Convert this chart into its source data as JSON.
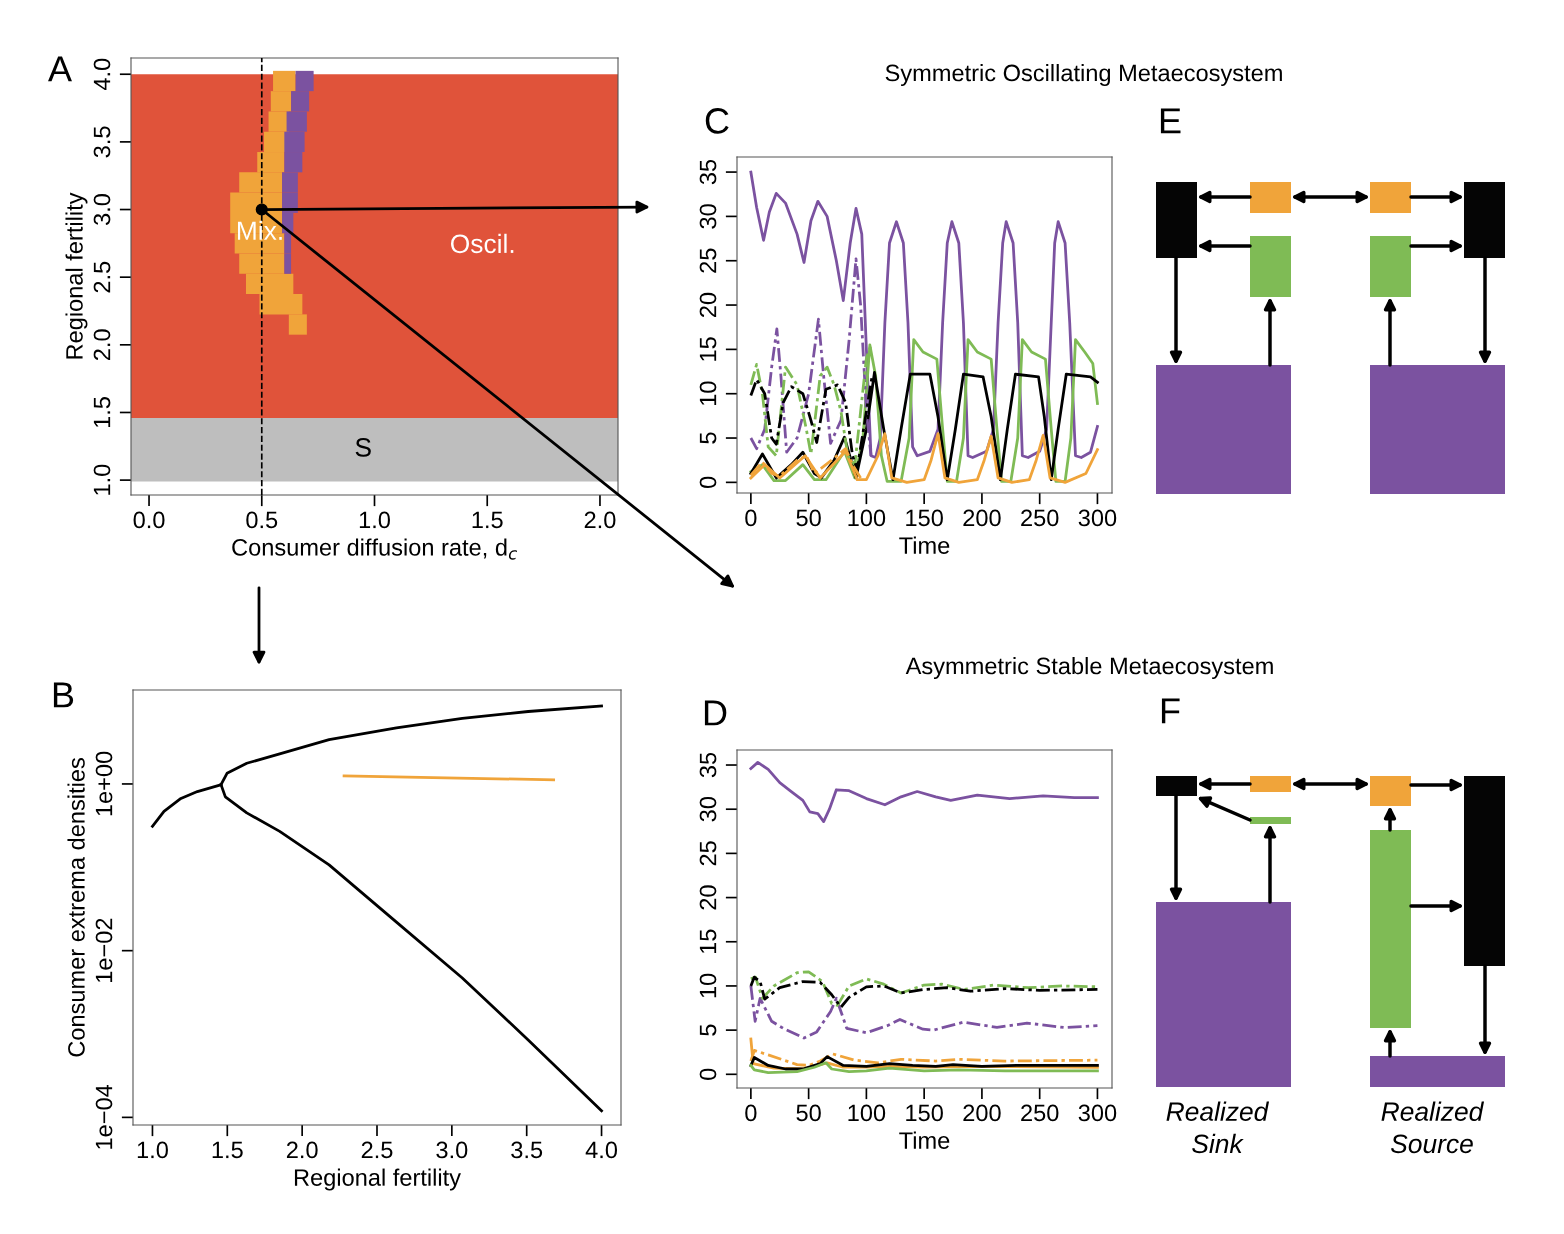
{
  "chart_data": [
    {
      "type": "bar",
      "orientation": "horizontal",
      "xlabel": "Consumer diffusion rate, d$_{c}$",
      "ylabel": "Regional fertility",
      "xlim": [
        -0.08,
        2.08
      ],
      "ylim": [
        0.89,
        4.12
      ],
      "xticks": [
        {
          "value": 0,
          "label": "0.0"
        },
        0.5,
        {
          "value": 1,
          "label": "1.0"
        },
        1.5,
        {
          "value": 2,
          "label": "2.0"
        }
      ],
      "yticks": [
        {
          "value": 1,
          "label": "1.0"
        },
        1.5,
        {
          "value": 2,
          "label": "2.0"
        },
        2.5,
        {
          "value": 3,
          "label": "3.0"
        },
        3.5,
        {
          "value": 4,
          "label": "4.0"
        }
      ],
      "annotations": [
        "A",
        "Mix."
      ],
      "bands": [
        {
          "axis": "y",
          "from": 1.46,
          "to": 4.0,
          "label": "Oscil.",
          "color": "#e0533a"
        },
        {
          "axis": "y",
          "from": 0.99,
          "to": 1.46,
          "label": "S",
          "color": "#bebebe"
        }
      ],
      "ref_lines": [
        {
          "axis": "x",
          "value": 0.5,
          "line_style": "dashed",
          "color": "#000000"
        }
      ],
      "series": [
        {
          "type": "bar",
          "color": "#f0a43a",
          "x": [
            3.95,
            3.8,
            3.65,
            3.5,
            3.35,
            3.2,
            3.05,
            2.9,
            2.75,
            2.6,
            2.45,
            2.3,
            2.15
          ],
          "base": [
            0.55,
            0.54,
            0.53,
            0.51,
            0.48,
            0.4,
            0.36,
            0.36,
            0.38,
            0.4,
            0.43,
            0.49,
            0.62
          ],
          "values": [
            0.1,
            0.09,
            0.09,
            0.1,
            0.12,
            0.19,
            0.23,
            0.23,
            0.22,
            0.2,
            0.21,
            0.19,
            0.08
          ]
        },
        {
          "type": "bar",
          "color": "#7b52a0",
          "x": [
            3.95,
            3.8,
            3.65,
            3.5,
            3.35,
            3.2,
            3.05,
            2.9,
            2.75,
            2.6
          ],
          "base": [
            0.65,
            0.63,
            0.61,
            0.6,
            0.6,
            0.59,
            0.59,
            0.59,
            0.6,
            0.6
          ],
          "values": [
            0.08,
            0.08,
            0.09,
            0.09,
            0.08,
            0.07,
            0.07,
            0.05,
            0.03,
            0.03
          ]
        },
        {
          "type": "scatter",
          "color": "#000000",
          "x": [
            3.0
          ],
          "values": [
            0.5
          ]
        }
      ]
    },
    {
      "type": "line",
      "log": "y",
      "xlabel": "Regional fertility",
      "ylabel": "Consumer extrema densities",
      "xlim": [
        0.87,
        4.13
      ],
      "ylim": [
        8.1e-05,
        13.4
      ],
      "xticks": [
        {
          "value": 1,
          "label": "1.0"
        },
        1.5,
        {
          "value": 2,
          "label": "2.0"
        },
        2.5,
        {
          "value": 3,
          "label": "3.0"
        },
        3.5,
        {
          "value": 4,
          "label": "4.0"
        }
      ],
      "yticks": [
        {
          "value": 0.0001,
          "label": "1e−04"
        },
        {
          "value": 0.01,
          "label": "1e−02"
        },
        {
          "value": 1,
          "label": "1e+00"
        }
      ],
      "annotations": [
        "B"
      ],
      "series": [
        {
          "color": "#000000",
          "x": [
            1.0,
            1.077,
            1.19,
            1.3,
            1.458
          ],
          "values": [
            0.31,
            0.47,
            0.67,
            0.81,
            0.98
          ]
        },
        {
          "color": "#000000",
          "x": [
            1.458,
            1.498,
            1.63,
            1.85,
            2.18,
            2.63,
            3.07,
            3.51,
            4.0
          ],
          "values": [
            0.98,
            1.34,
            1.77,
            2.3,
            3.4,
            4.7,
            6.1,
            7.4,
            8.6
          ]
        },
        {
          "color": "#000000",
          "x": [
            1.458,
            1.487,
            1.63,
            1.85,
            2.18,
            2.63,
            3.07,
            3.51,
            4.0
          ],
          "values": [
            0.98,
            0.7,
            0.45,
            0.27,
            0.107,
            0.022,
            0.0047,
            0.00085,
            0.00012
          ]
        },
        {
          "color": "#f0a43a",
          "x": [
            2.28,
            3.68
          ],
          "values": [
            1.25,
            1.12
          ]
        }
      ]
    },
    {
      "type": "line",
      "title": "Symmetric Oscillating Metaecosystem",
      "xlabel": "Time",
      "xlim": [
        -12,
        312.6
      ],
      "ylim": [
        -1.2,
        36.7
      ],
      "xticks": [
        0,
        50,
        100,
        150,
        200,
        250,
        300
      ],
      "yticks": [
        0,
        5,
        10,
        15,
        20,
        25,
        30,
        35
      ],
      "annotations": [
        "C"
      ],
      "series": [
        {
          "color": "#7b52a0",
          "x": [
            0,
            5,
            11,
            16,
            22,
            30,
            40,
            46,
            52,
            58,
            66,
            74,
            80,
            86,
            91,
            96,
            100,
            104,
            108,
            112,
            116,
            120,
            126,
            132,
            136,
            140,
            144,
            155,
            162,
            166,
            170,
            174,
            180,
            184,
            188,
            192,
            204,
            210,
            214,
            218,
            221,
            227,
            231,
            235,
            240,
            250,
            256,
            260,
            263,
            266,
            272,
            276,
            281,
            286,
            294,
            300
          ],
          "values": [
            35,
            31,
            27.3,
            30.5,
            32.6,
            31.5,
            28,
            24.8,
            29.5,
            31.7,
            30,
            25,
            20.5,
            27,
            30.9,
            28,
            15,
            3,
            2.8,
            5,
            18,
            27,
            29.4,
            27,
            18,
            4,
            3,
            3.5,
            6,
            18,
            27,
            29.4,
            27,
            18,
            3,
            2.8,
            3.5,
            6,
            18,
            27,
            29.4,
            27,
            18,
            3,
            2.8,
            3.5,
            6,
            18,
            27,
            29.4,
            27,
            18,
            3,
            2.8,
            3.4,
            6.3
          ]
        },
        {
          "color": "#7fbb55",
          "x": [
            0,
            10,
            20,
            30,
            45,
            55,
            65,
            81,
            90,
            97,
            103,
            108,
            113,
            118,
            130,
            137,
            141,
            149,
            161,
            166,
            170,
            178,
            184,
            188,
            196,
            208,
            213,
            217,
            225,
            231,
            235,
            243,
            255,
            260,
            264,
            272,
            277,
            281,
            289,
            296,
            300
          ],
          "values": [
            1.2,
            2,
            0.2,
            0.2,
            2,
            0.3,
            0.3,
            3.5,
            0.5,
            5,
            15.5,
            12,
            3,
            0.1,
            0.1,
            5,
            16.1,
            14.7,
            13.9,
            6,
            0.1,
            0.1,
            5,
            16.1,
            14.7,
            13.9,
            6,
            0.1,
            0.1,
            5,
            16.1,
            14.7,
            13.9,
            6,
            0.1,
            0.1,
            5,
            16.1,
            14.7,
            13.4,
            8.9
          ]
        },
        {
          "color": "#000000",
          "x": [
            0,
            10,
            22,
            35,
            45,
            55,
            61,
            72,
            81,
            91,
            100,
            107,
            115,
            123,
            130,
            138,
            155,
            162,
            170,
            177,
            184,
            201,
            208,
            216,
            222,
            229,
            249,
            254,
            260,
            266,
            273,
            294,
            300
          ],
          "values": [
            1,
            3.2,
            0.5,
            2,
            3.4,
            1,
            0.5,
            2.5,
            5.1,
            0.5,
            6,
            12.4,
            6,
            0.3,
            6,
            12.2,
            12.2,
            7.4,
            0.3,
            6,
            12.2,
            11.9,
            7.4,
            0.3,
            6,
            12.2,
            11.9,
            7.4,
            0.3,
            6,
            12.2,
            11.9,
            11.3
          ]
        },
        {
          "color": "#f0a43a",
          "x": [
            0,
            12,
            25,
            47,
            60,
            82,
            92,
            100,
            110,
            116,
            122,
            135,
            150,
            156,
            162,
            168,
            180,
            196,
            202,
            208,
            214,
            226,
            241,
            247,
            253,
            259,
            272,
            290,
            300
          ],
          "values": [
            0.5,
            2,
            0.5,
            3,
            0.5,
            3.5,
            0.3,
            0.3,
            3,
            5.5,
            0.5,
            0,
            0.3,
            2.5,
            5.5,
            0.5,
            0,
            0.3,
            2.5,
            5.2,
            0.5,
            0,
            0.3,
            2.5,
            5.3,
            0.5,
            0,
            1,
            3.7
          ]
        },
        {
          "color": "#7b52a0",
          "line_style": "dashdot",
          "x": [
            0,
            5,
            12,
            18,
            22.5,
            26,
            31,
            40,
            50,
            58.5,
            63,
            69,
            78,
            85,
            91,
            95,
            100,
            104
          ],
          "values": [
            5,
            3.8,
            6,
            13,
            17.3,
            12,
            3.4,
            5,
            10,
            18.4,
            12,
            4.4,
            7,
            16,
            25.2,
            20,
            8,
            3
          ]
        },
        {
          "color": "#7fbb55",
          "line_style": "dashdot",
          "x": [
            0,
            5,
            10,
            15,
            22,
            30,
            40,
            48,
            52,
            60,
            66,
            72,
            78,
            84,
            90,
            100,
            104
          ],
          "values": [
            11,
            13.3,
            10,
            4,
            3,
            13,
            11,
            6,
            3.2,
            12,
            13,
            11,
            8,
            3,
            2,
            14,
            15.5
          ]
        },
        {
          "color": "#000000",
          "line_style": "dashdot",
          "x": [
            0,
            5,
            12,
            18,
            22,
            28,
            35,
            45,
            52,
            57,
            65,
            75,
            82,
            88,
            92,
            100,
            105
          ],
          "values": [
            9.8,
            11.6,
            10,
            5,
            4.3,
            9,
            10.8,
            10,
            7,
            4.5,
            10.5,
            11,
            9,
            3,
            1.5,
            8,
            12
          ]
        },
        {
          "color": "#f0a43a",
          "line_style": "dashdot",
          "x": [
            0,
            10,
            18,
            25,
            40,
            48,
            55,
            70,
            82,
            88,
            95
          ],
          "values": [
            0.8,
            2.3,
            1,
            0.7,
            2.5,
            3,
            1,
            2.5,
            3.8,
            2,
            0.5
          ]
        }
      ]
    },
    {
      "type": "line",
      "title": "Asymmetric Stable Metaecosystem",
      "xlabel": "Time",
      "xlim": [
        -12,
        312.6
      ],
      "ylim": [
        -1.55,
        36.7
      ],
      "xticks": [
        0,
        50,
        100,
        150,
        200,
        250,
        300
      ],
      "yticks": [
        0,
        5,
        10,
        15,
        20,
        25,
        30,
        35
      ],
      "annotations": [
        "D"
      ],
      "series": [
        {
          "color": "#7b52a0",
          "x": [
            0,
            6,
            15,
            25,
            35,
            45,
            51,
            58,
            63,
            68,
            74,
            85,
            100,
            116,
            130,
            144,
            160,
            173,
            196,
            224,
            253,
            280,
            300
          ],
          "values": [
            34.6,
            35.3,
            34.5,
            33,
            32,
            31,
            29.7,
            29.5,
            28.6,
            30,
            32.2,
            32.1,
            31.2,
            30.5,
            31.4,
            32,
            31.4,
            31,
            31.6,
            31.2,
            31.5,
            31.3,
            31.3
          ]
        },
        {
          "color": "#7b52a0",
          "line_style": "dashdot",
          "x": [
            0,
            3.7,
            8,
            18,
            28,
            46,
            57,
            69,
            74,
            83,
            100,
            118,
            129,
            149,
            158,
            184,
            213,
            239,
            271,
            300
          ],
          "values": [
            10,
            6,
            8.6,
            6,
            5.2,
            4.1,
            4.8,
            7.1,
            8.6,
            5.2,
            4.7,
            5.5,
            6.2,
            5.1,
            5,
            5.9,
            5.3,
            5.8,
            5.3,
            5.5
          ]
        },
        {
          "color": "#7fbb55",
          "line_style": "dashdot",
          "x": [
            0,
            4,
            10,
            20,
            40,
            50,
            62,
            70,
            75,
            85,
            100,
            115,
            130,
            150,
            165,
            185,
            210,
            240,
            270,
            300
          ],
          "values": [
            10.8,
            11,
            8.6,
            10,
            11.5,
            11.6,
            10.5,
            8,
            7.8,
            10,
            10.8,
            10.2,
            9.2,
            10.1,
            10.2,
            9.6,
            10.1,
            9.8,
            10,
            9.9
          ]
        },
        {
          "color": "#000000",
          "line_style": "dashdot",
          "x": [
            0,
            3,
            8,
            12,
            25,
            45,
            60,
            70,
            78,
            85,
            100,
            115,
            130,
            150,
            170,
            190,
            220,
            250,
            300
          ],
          "values": [
            10,
            11,
            10.5,
            8.5,
            9.8,
            10.5,
            10.4,
            9,
            7.6,
            8.7,
            9.9,
            10,
            9.2,
            9.6,
            9.8,
            9.4,
            9.7,
            9.5,
            9.6
          ]
        },
        {
          "color": "#f0a43a",
          "line_style": "dashdot",
          "x": [
            0,
            3,
            15,
            40,
            50,
            60,
            71,
            90,
            110,
            130,
            160,
            180,
            220,
            300
          ],
          "values": [
            1.5,
            2.7,
            2.2,
            1.1,
            1,
            1.5,
            2.3,
            1.6,
            1.3,
            1.7,
            1.5,
            1.7,
            1.5,
            1.6
          ]
        },
        {
          "color": "#f0a43a",
          "x": [
            0,
            2,
            20,
            45,
            60,
            66,
            80,
            100,
            120,
            150,
            200,
            300
          ],
          "values": [
            4,
            1.2,
            0.7,
            0.6,
            1.1,
            1.3,
            0.8,
            0.8,
            0.9,
            0.8,
            0.9,
            0.8
          ]
        },
        {
          "color": "#000000",
          "x": [
            0,
            3,
            15,
            30,
            45,
            60,
            66,
            80,
            100,
            120,
            140,
            160,
            175,
            200,
            230,
            300
          ],
          "values": [
            1,
            1.9,
            1,
            0.6,
            0.6,
            1.2,
            2,
            1,
            0.9,
            1.2,
            1,
            0.9,
            1.1,
            0.9,
            1,
            1
          ]
        },
        {
          "color": "#7fbb55",
          "x": [
            0,
            3,
            15,
            40,
            55,
            65,
            70,
            85,
            100,
            120,
            150,
            180,
            220,
            300
          ],
          "values": [
            1,
            0.5,
            0.2,
            0.3,
            0.8,
            1.3,
            0.6,
            0.3,
            0.4,
            0.7,
            0.4,
            0.5,
            0.4,
            0.4
          ]
        }
      ]
    },
    {
      "type": "other",
      "annotations": [
        "E"
      ]
    },
    {
      "type": "other",
      "annotations": [
        "F",
        "Realized\nSink",
        "Realized\nSource"
      ]
    }
  ]
}
